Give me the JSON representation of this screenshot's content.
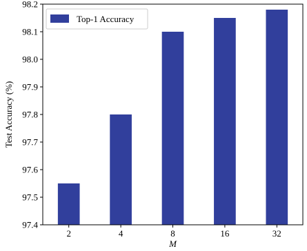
{
  "chart_data": {
    "type": "bar",
    "categories": [
      "2",
      "4",
      "8",
      "16",
      "32"
    ],
    "series": [
      {
        "name": "Top-1 Accuracy",
        "values": [
          97.55,
          97.8,
          98.1,
          98.15,
          98.18
        ]
      }
    ],
    "xlabel": "M",
    "ylabel": "Test Accuracy (%)",
    "ylim": [
      97.4,
      98.2
    ],
    "yticks": [
      "97.4",
      "97.5",
      "97.6",
      "97.7",
      "97.8",
      "97.9",
      "98.0",
      "98.1",
      "98.2"
    ],
    "grid": false,
    "legend_position": "top-left",
    "colors": {
      "bar": "#313f9c",
      "axis": "#000000"
    }
  }
}
